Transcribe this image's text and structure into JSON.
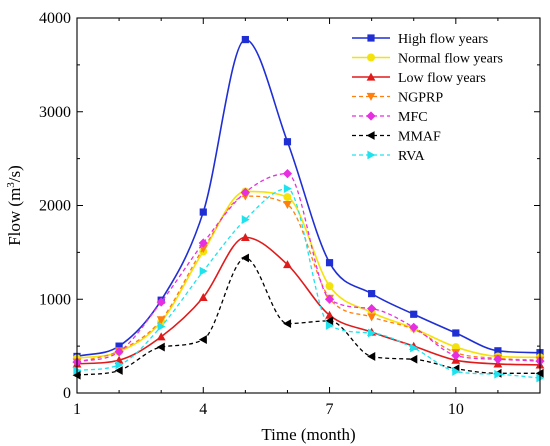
{
  "chart_data": {
    "type": "line",
    "xlabel": "Time (month)",
    "ylabel": "Flow (m",
    "ylabel_sup": "3",
    "ylabel_suffix": "/s)",
    "xlim": [
      1,
      12
    ],
    "ylim": [
      0,
      4000
    ],
    "xticks": [
      1,
      4,
      7,
      10
    ],
    "yticks": [
      0,
      1000,
      2000,
      3000,
      4000
    ],
    "legend_position": "top-right",
    "x": [
      1,
      2,
      3,
      4,
      5,
      6,
      7,
      8,
      9,
      10,
      11,
      12
    ],
    "series": [
      {
        "name": "High flow years",
        "color": "#1f2fd4",
        "dash": "solid",
        "marker": "square",
        "values": [
          390,
          500,
          990,
          1930,
          3770,
          2680,
          1390,
          1060,
          840,
          640,
          450,
          430
        ]
      },
      {
        "name": "Normal flow years",
        "color": "#f4e20c",
        "dash": "solid",
        "marker": "circle",
        "values": [
          370,
          440,
          760,
          1510,
          2150,
          2090,
          1140,
          860,
          690,
          490,
          390,
          380
        ]
      },
      {
        "name": "Low flow years",
        "color": "#e01b1b",
        "dash": "solid",
        "marker": "triangle-up",
        "values": [
          310,
          350,
          600,
          1020,
          1660,
          1370,
          830,
          650,
          500,
          350,
          310,
          300
        ]
      },
      {
        "name": "NGPRP",
        "color": "#ff7f0e",
        "dash": "dashed",
        "marker": "triangle-down",
        "values": [
          330,
          450,
          780,
          1540,
          2100,
          2010,
          1010,
          810,
          680,
          430,
          370,
          350
        ]
      },
      {
        "name": "MFC",
        "color": "#e62fe0",
        "dash": "dashed",
        "marker": "diamond",
        "values": [
          330,
          440,
          970,
          1600,
          2140,
          2340,
          1000,
          900,
          700,
          400,
          360,
          340
        ]
      },
      {
        "name": "MMAF",
        "color": "#000000",
        "dash": "dashed",
        "marker": "triangle-left",
        "values": [
          190,
          240,
          490,
          570,
          1440,
          740,
          770,
          390,
          360,
          260,
          210,
          210
        ]
      },
      {
        "name": "RVA",
        "color": "#1ee3ee",
        "dash": "dashed",
        "marker": "triangle-right",
        "values": [
          240,
          300,
          710,
          1300,
          1850,
          2180,
          720,
          640,
          480,
          230,
          200,
          160
        ]
      }
    ]
  }
}
